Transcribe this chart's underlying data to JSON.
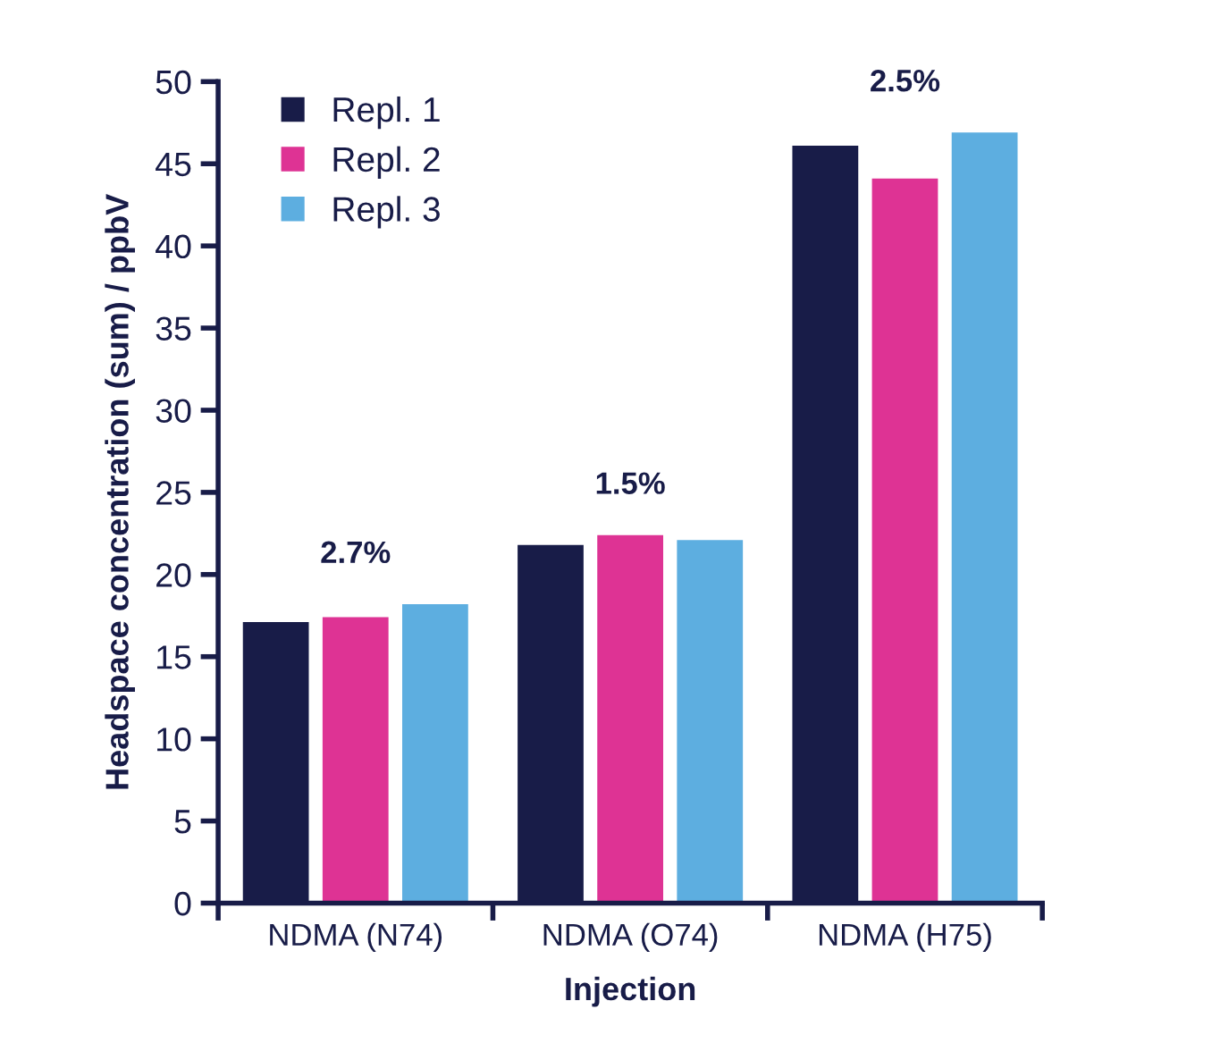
{
  "chart_data": {
    "type": "bar",
    "xlabel": "Injection",
    "ylabel": "Headspace concentration (sum) / ppbV",
    "categories": [
      "NDMA (N74)",
      "NDMA (O74)",
      "NDMA (H75)"
    ],
    "series": [
      {
        "name": "Repl. 1",
        "color": "#181c48",
        "values": [
          17.1,
          21.8,
          46.1
        ]
      },
      {
        "name": "Repl. 2",
        "color": "#de3394",
        "values": [
          17.4,
          22.4,
          44.1
        ]
      },
      {
        "name": "Repl. 3",
        "color": "#5daee0",
        "values": [
          18.2,
          22.1,
          46.9
        ]
      }
    ],
    "annotations": [
      "2.7%",
      "1.5%",
      "2.5%"
    ],
    "ylim": [
      0,
      50
    ],
    "yticks": [
      0,
      5,
      10,
      15,
      20,
      25,
      30,
      35,
      40,
      45,
      50
    ],
    "grid": false,
    "legend": "top left"
  }
}
